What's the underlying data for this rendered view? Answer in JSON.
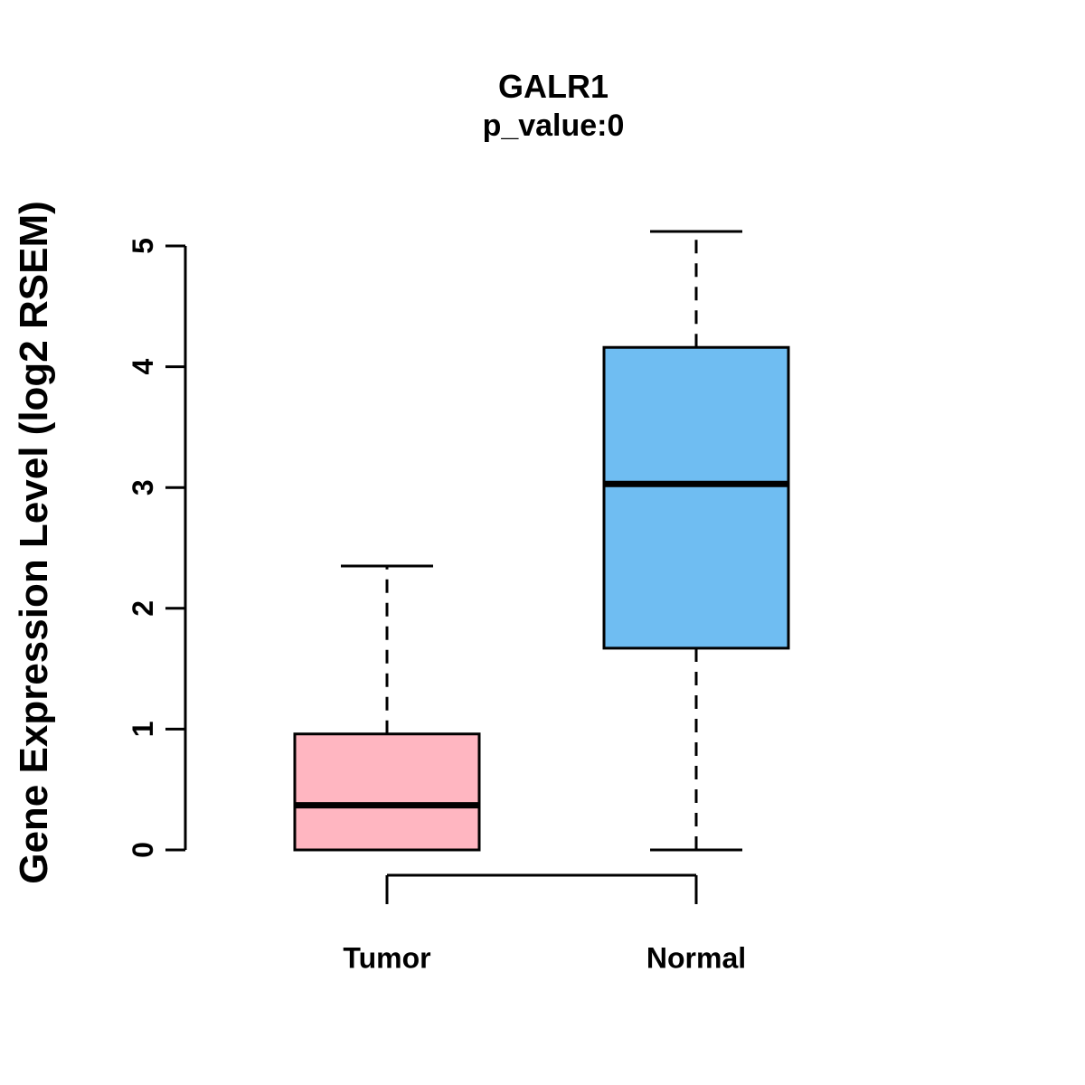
{
  "chart_data": {
    "type": "boxplot",
    "title": "GALR1",
    "subtitle": "p_value:0",
    "ylabel": "Gene Expression Level (log2 RSEM)",
    "categories": [
      "Tumor",
      "Normal"
    ],
    "series": [
      {
        "name": "Tumor",
        "color": "#FFB6C1",
        "whisker_low": 0,
        "q1": 0,
        "median": 0.37,
        "q3": 0.96,
        "whisker_high": 2.35
      },
      {
        "name": "Normal",
        "color": "#6FBDF2",
        "whisker_low": 0,
        "q1": 1.67,
        "median": 3.03,
        "q3": 4.16,
        "whisker_high": 5.12
      }
    ],
    "ylim": [
      0,
      5
    ],
    "yticks": [
      0,
      1,
      2,
      3,
      4,
      5
    ],
    "grid": false,
    "axis_color": "#000000",
    "whisker_style": "dashed",
    "legend": "none"
  }
}
